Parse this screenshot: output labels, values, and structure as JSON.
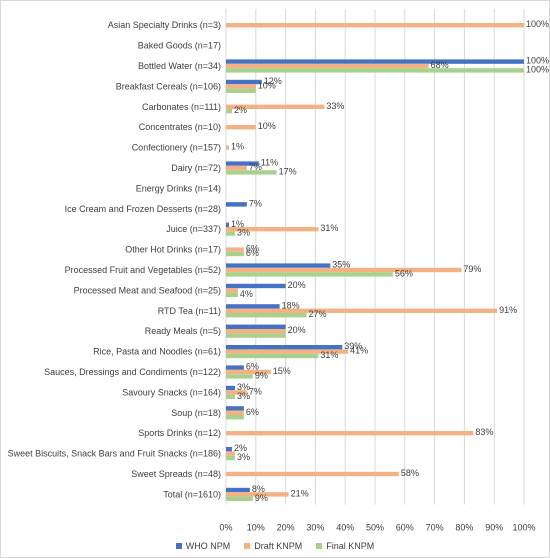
{
  "chart_data": {
    "type": "bar",
    "orientation": "horizontal",
    "categories": [
      "Asian Specialty Drinks (n=3)",
      "Baked Goods (n=17)",
      "Bottled Water (n=34)",
      "Breakfast Cereals (n=106)",
      "Carbonates (n=111)",
      "Concentrates (n=10)",
      "Confectionery (n=157)",
      "Dairy (n=72)",
      "Energy Drinks (n=14)",
      "Ice Cream and Frozen Desserts (n=28)",
      "Juice (n=337)",
      "Other Hot Drinks (n=17)",
      "Processed Fruit and Vegetables (n=52)",
      "Processed Meat and Seafood (n=25)",
      "RTD Tea (n=11)",
      "Ready Meals (n=5)",
      "Rice, Pasta and Noodles (n=61)",
      "Sauces, Dressings and Condiments (n=122)",
      "Savoury Snacks (n=164)",
      "Soup (n=18)",
      "Sports Drinks (n=12)",
      "Sweet Biscuits, Snack Bars and Fruit Snacks (n=186)",
      "Sweet Spreads (n=48)",
      "Total (n=1610)"
    ],
    "series": [
      {
        "name": "WHO NPM",
        "color": "#4472c4",
        "values": [
          0,
          0,
          100,
          12,
          0,
          0,
          0,
          11,
          0,
          7,
          1,
          0,
          35,
          20,
          18,
          20,
          39,
          6,
          3,
          6,
          0,
          2,
          0,
          8
        ],
        "labels": [
          "",
          "",
          "100%",
          "12%",
          "",
          "",
          "",
          "11%",
          "",
          "7%",
          "1%",
          "",
          "35%",
          "20%",
          "18%",
          "",
          "39%",
          "6%",
          "3%",
          "",
          "",
          "2%",
          "",
          "8%"
        ]
      },
      {
        "name": "Draft KNPM",
        "color": "#f4b183",
        "values": [
          100,
          0,
          68,
          10,
          33,
          10,
          1,
          7,
          0,
          0,
          31,
          6,
          79,
          4,
          91,
          20,
          41,
          15,
          7,
          6,
          83,
          3,
          58,
          21
        ],
        "labels": [
          "100%",
          "",
          "68%",
          "10%",
          "33%",
          "10%",
          "1%",
          "7%",
          "",
          "",
          "31%",
          "6%",
          "79%",
          "",
          "91%",
          "20%",
          "41%",
          "15%",
          "7%",
          "6%",
          "83%",
          "",
          "58%",
          "21%"
        ]
      },
      {
        "name": "Final KNPM",
        "color": "#a9d18e",
        "values": [
          0,
          0,
          100,
          10,
          2,
          0,
          0,
          17,
          0,
          0,
          3,
          6,
          56,
          4,
          27,
          20,
          31,
          9,
          3,
          6,
          0,
          3,
          0,
          9
        ],
        "labels": [
          "",
          "",
          "100%",
          "",
          "2%",
          "",
          "",
          "17%",
          "",
          "",
          "3%",
          "6%",
          "56%",
          "4%",
          "27%",
          "",
          "31%",
          "9%",
          "3%",
          "",
          "",
          "3%",
          "",
          "9%"
        ]
      }
    ],
    "xticks": [
      "0%",
      "10%",
      "20%",
      "30%",
      "40%",
      "50%",
      "60%",
      "70%",
      "80%",
      "90%",
      "100%"
    ],
    "xlim": [
      0,
      100
    ],
    "grid": true,
    "legend_position": "bottom"
  }
}
